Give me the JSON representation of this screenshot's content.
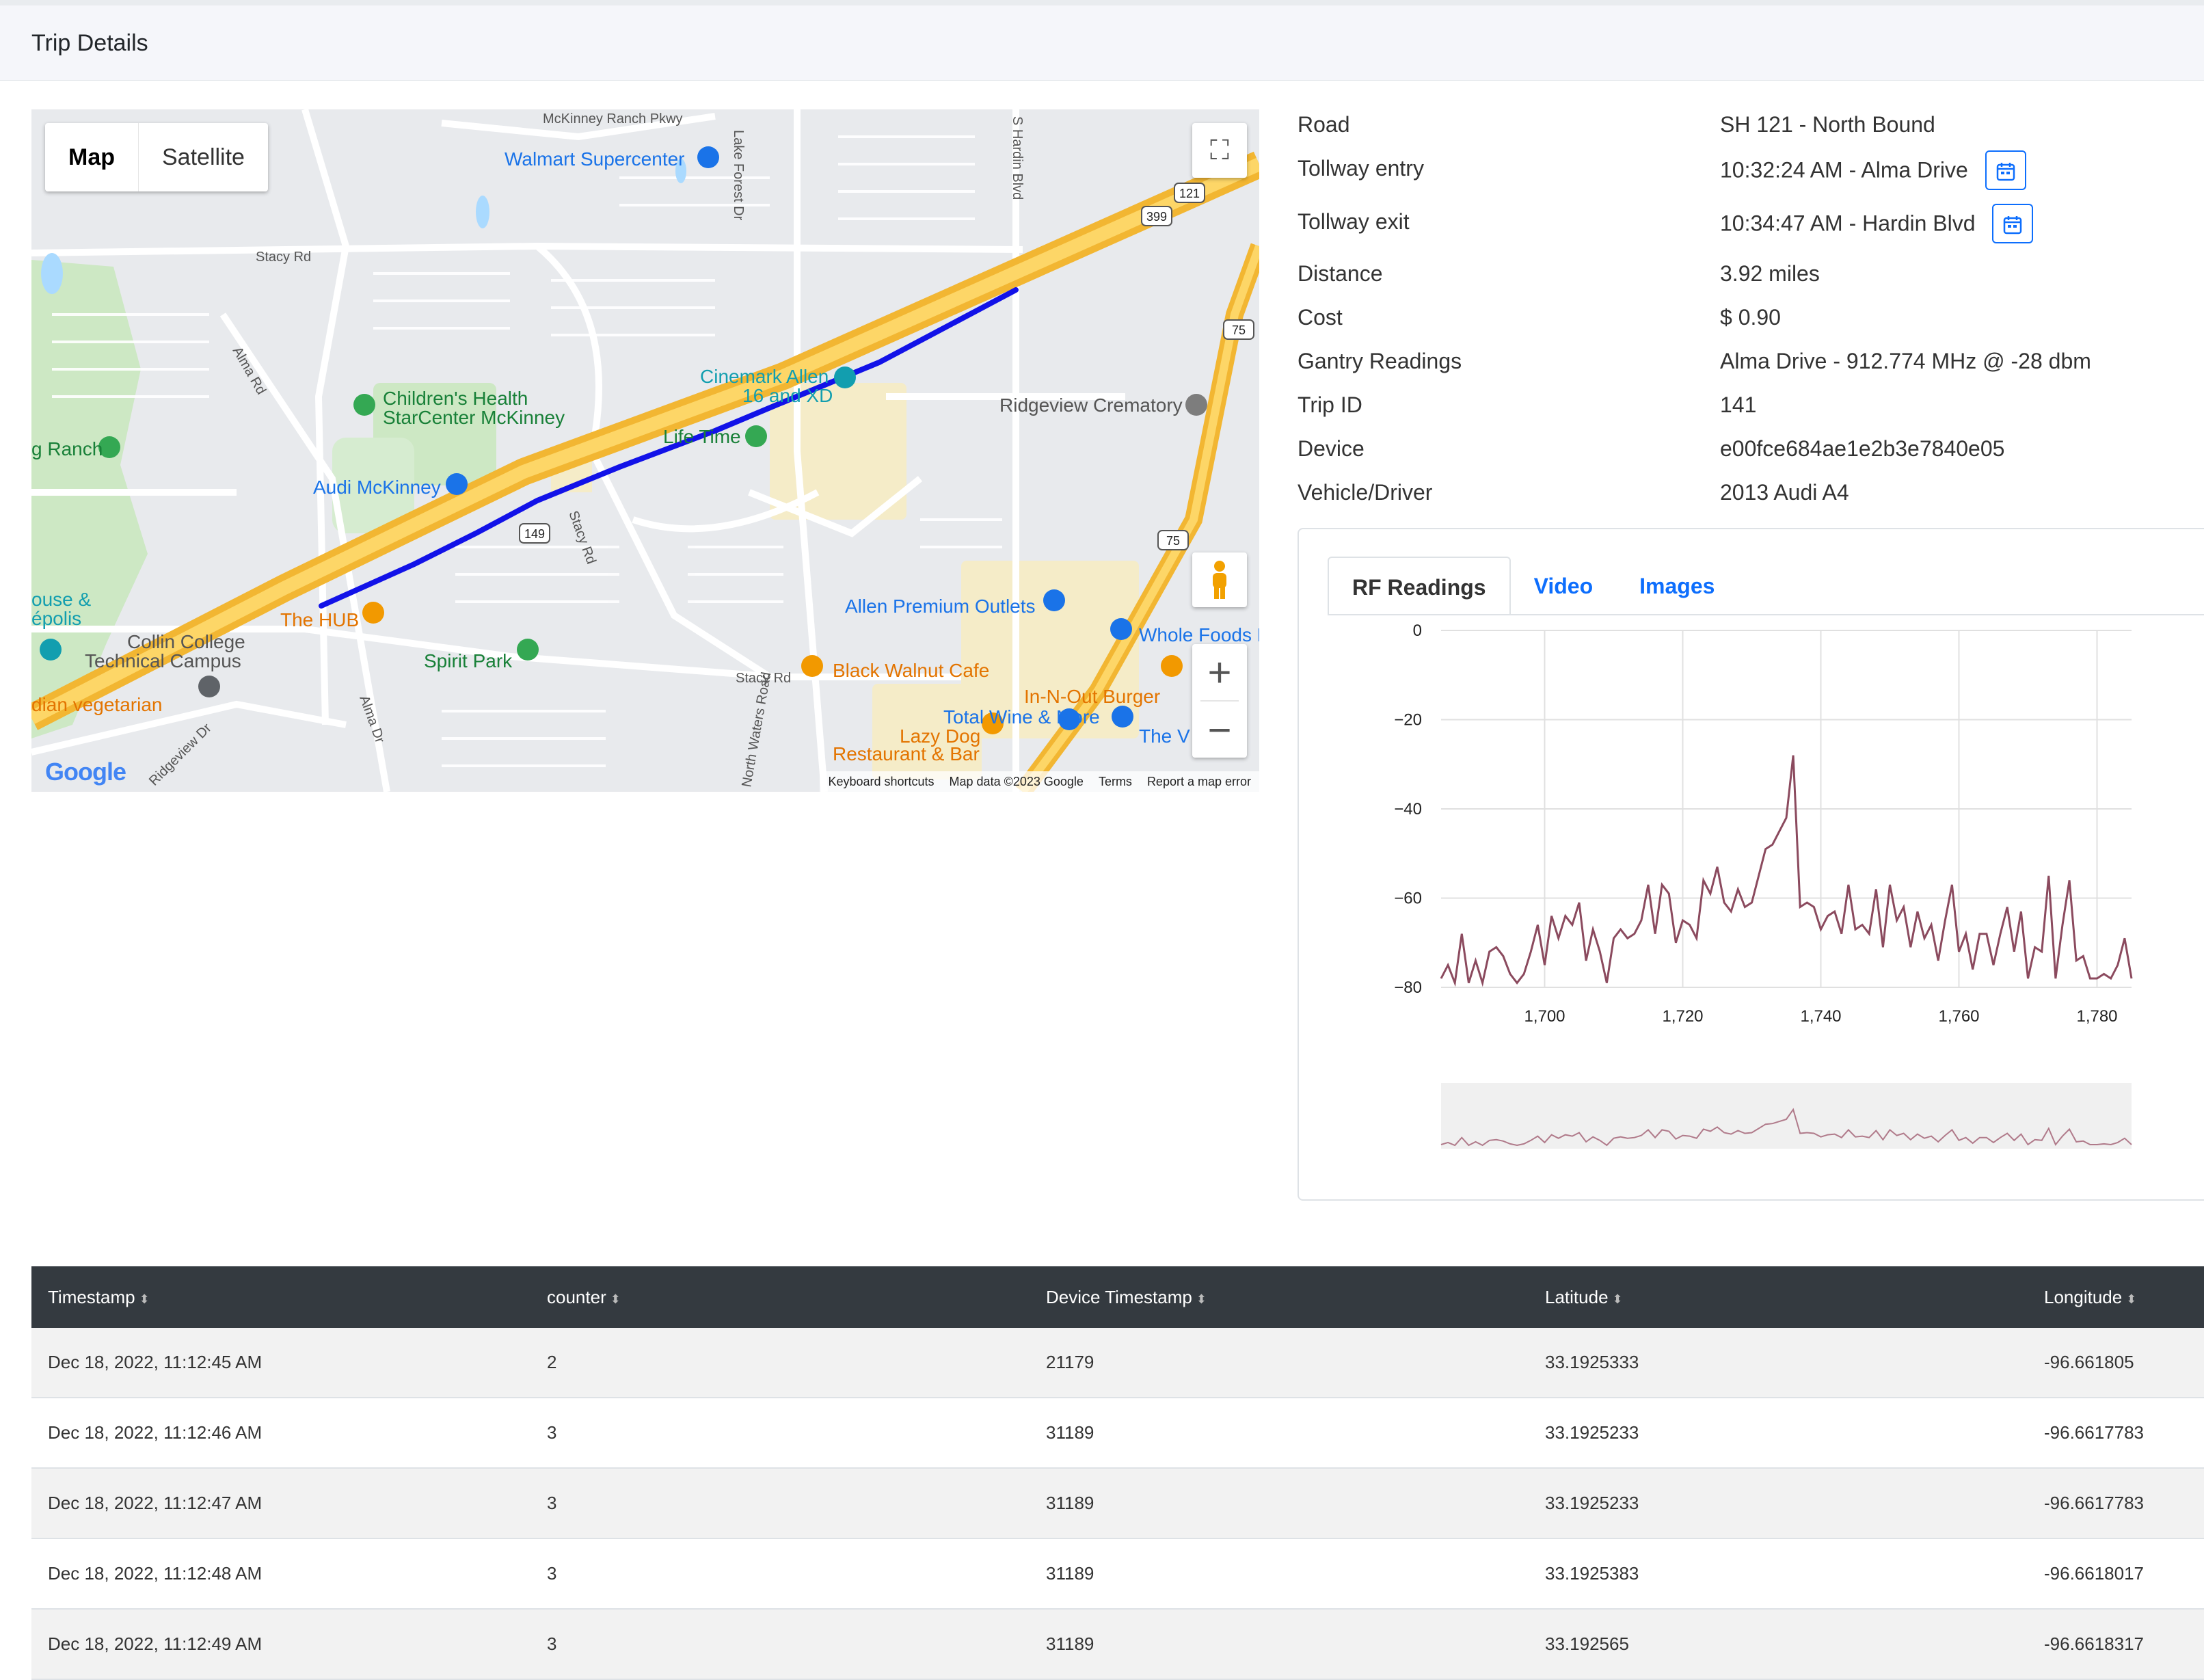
{
  "header": {
    "title": "Trip Details"
  },
  "map": {
    "toggle": {
      "map": "Map",
      "satellite": "Satellite"
    },
    "labels": [
      {
        "t": "McKinney Ranch Pkwy",
        "c": "#555",
        "s": 20
      },
      {
        "t": "Walmart Supercenter",
        "c": "#1a73e8",
        "s": 28
      },
      {
        "t": "Lake Forest Dr",
        "c": "#555",
        "s": 20
      },
      {
        "t": "S Hardin Blvd",
        "c": "#555",
        "s": 20
      },
      {
        "t": "Stacy Rd",
        "c": "#555",
        "s": 20
      },
      {
        "t": "Alma Rd",
        "c": "#555",
        "s": 20
      },
      {
        "t": "Children's Health",
        "c": "#188038",
        "s": 28
      },
      {
        "t": "StarCenter McKinney",
        "c": "#188038",
        "s": 28
      },
      {
        "t": "Cinemark Allen",
        "c": "#129eaf",
        "s": 28
      },
      {
        "t": "16 and XD",
        "c": "#129eaf",
        "s": 28
      },
      {
        "t": "Ridgeview Crematory",
        "c": "#555",
        "s": 28
      },
      {
        "t": "g Ranch",
        "c": "#188038",
        "s": 28
      },
      {
        "t": "Life Time",
        "c": "#188038",
        "s": 28
      },
      {
        "t": "Audi McKinney",
        "c": "#1a73e8",
        "s": 28
      },
      {
        "t": "Stacy Rd",
        "c": "#555",
        "s": 20
      },
      {
        "t": "ouse &",
        "c": "#129eaf",
        "s": 28
      },
      {
        "t": "épolis",
        "c": "#129eaf",
        "s": 28
      },
      {
        "t": "The HUB",
        "c": "#e37400",
        "s": 28
      },
      {
        "t": "Allen Premium Outlets",
        "c": "#1a73e8",
        "s": 28
      },
      {
        "t": "Whole Foods M",
        "c": "#1a73e8",
        "s": 28
      },
      {
        "t": "Collin College",
        "c": "#555",
        "s": 28
      },
      {
        "t": "Technical Campus",
        "c": "#555",
        "s": 28
      },
      {
        "t": "Spirit Park",
        "c": "#188038",
        "s": 28
      },
      {
        "t": "Black Walnut Cafe",
        "c": "#e37400",
        "s": 28
      },
      {
        "t": "Stacy Rd",
        "c": "#555",
        "s": 20
      },
      {
        "t": "In-N-Out Burger",
        "c": "#e37400",
        "s": 28
      },
      {
        "t": "Total Wine & More",
        "c": "#1a73e8",
        "s": 28
      },
      {
        "t": "dian vegetarian",
        "c": "#e37400",
        "s": 28
      },
      {
        "t": "Alma Dr",
        "c": "#555",
        "s": 20
      },
      {
        "t": "Lazy Dog",
        "c": "#e37400",
        "s": 28
      },
      {
        "t": "Restaurant & Bar",
        "c": "#e37400",
        "s": 28
      },
      {
        "t": "The V",
        "c": "#1a73e8",
        "s": 28
      },
      {
        "t": "Ridgeview Dr",
        "c": "#555",
        "s": 20
      },
      {
        "t": "North Waters Road",
        "c": "#555",
        "s": 20
      }
    ],
    "shields": [
      "121",
      "399",
      "75",
      "149",
      "75"
    ],
    "google": "Google",
    "attribution": [
      "Keyboard shortcuts",
      "Map data ©2023 Google",
      "Terms",
      "Report a map error"
    ]
  },
  "details": [
    {
      "label": "Road",
      "value": "SH 121 - North Bound",
      "cal": false
    },
    {
      "label": "Tollway entry",
      "value": "10:32:24 AM - Alma Drive",
      "cal": true
    },
    {
      "label": "Tollway exit",
      "value": "10:34:47 AM - Hardin Blvd",
      "cal": true
    },
    {
      "label": "Distance",
      "value": "3.92 miles",
      "cal": false
    },
    {
      "label": "Cost",
      "value": "$ 0.90",
      "cal": false
    },
    {
      "label": "Gantry Readings",
      "value": "Alma Drive - 912.774 MHz @ -28 dbm",
      "cal": false
    },
    {
      "label": "Trip ID",
      "value": "141",
      "cal": false
    },
    {
      "label": "Device",
      "value": "e00fce684ae1e2b3e7840e05",
      "cal": false
    },
    {
      "label": "Vehicle/Driver",
      "value": "2013 Audi A4",
      "cal": false
    }
  ],
  "tabs": [
    "RF Readings",
    "Video",
    "Images"
  ],
  "chart_data": {
    "type": "line",
    "xlim": [
      1685,
      1785
    ],
    "ylim": [
      -80,
      0
    ],
    "xticks": [
      1700,
      1720,
      1740,
      1760,
      1780
    ],
    "xtick_labels": [
      "1,700",
      "1,720",
      "1,740",
      "1,760",
      "1,780"
    ],
    "yticks": [
      0,
      -20,
      -40,
      -60,
      -80
    ],
    "ytick_labels": [
      "0",
      "−20",
      "−40",
      "−60",
      "−80"
    ],
    "color": "#8b4a5e",
    "x": [
      1685,
      1686,
      1687,
      1688,
      1689,
      1690,
      1691,
      1692,
      1693,
      1694,
      1695,
      1696,
      1697,
      1698,
      1699,
      1700,
      1701,
      1702,
      1703,
      1704,
      1705,
      1706,
      1707,
      1708,
      1709,
      1710,
      1711,
      1712,
      1713,
      1714,
      1715,
      1716,
      1717,
      1718,
      1719,
      1720,
      1721,
      1722,
      1723,
      1724,
      1725,
      1726,
      1727,
      1728,
      1729,
      1730,
      1731,
      1732,
      1733,
      1734,
      1735,
      1736,
      1737,
      1738,
      1739,
      1740,
      1741,
      1742,
      1743,
      1744,
      1745,
      1746,
      1747,
      1748,
      1749,
      1750,
      1751,
      1752,
      1753,
      1754,
      1755,
      1756,
      1757,
      1758,
      1759,
      1760,
      1761,
      1762,
      1763,
      1764,
      1765,
      1766,
      1767,
      1768,
      1769,
      1770,
      1771,
      1772,
      1773,
      1774,
      1775,
      1776,
      1777,
      1778,
      1779,
      1780,
      1781,
      1782,
      1783,
      1784,
      1785
    ],
    "values": [
      -78,
      -75,
      -79,
      -68,
      -79,
      -74,
      -79,
      -72,
      -71,
      -73,
      -77,
      -79,
      -77,
      -72,
      -66,
      -75,
      -64,
      -69,
      -64,
      -66,
      -61,
      -74,
      -67,
      -72,
      -79,
      -69,
      -67,
      -69,
      -68,
      -65,
      -57,
      -68,
      -57,
      -59,
      -70,
      -65,
      -66,
      -69,
      -56,
      -59,
      -53,
      -61,
      -63,
      -58,
      -62,
      -61,
      -55,
      -49,
      -48,
      -45,
      -42,
      -28,
      -62,
      -61,
      -62,
      -67,
      -64,
      -63,
      -68,
      -57,
      -67,
      -66,
      -68,
      -58,
      -71,
      -57,
      -65,
      -62,
      -71,
      -63,
      -69,
      -66,
      -74,
      -65,
      -57,
      -72,
      -68,
      -76,
      -68,
      -68,
      -75,
      -68,
      -62,
      -72,
      -63,
      -78,
      -71,
      -72,
      -55,
      -78,
      -66,
      -56,
      -74,
      -73,
      -78,
      -78,
      -77,
      -78,
      -75,
      -69,
      -78
    ]
  },
  "table": {
    "columns": [
      "Timestamp",
      "counter",
      "Device Timestamp",
      "Latitude",
      "Longitude"
    ],
    "rows": [
      [
        "Dec 18, 2022, 11:12:45 AM",
        "2",
        "21179",
        "33.1925333",
        "-96.661805"
      ],
      [
        "Dec 18, 2022, 11:12:46 AM",
        "3",
        "31189",
        "33.1925233",
        "-96.6617783"
      ],
      [
        "Dec 18, 2022, 11:12:47 AM",
        "3",
        "31189",
        "33.1925233",
        "-96.6617783"
      ],
      [
        "Dec 18, 2022, 11:12:48 AM",
        "3",
        "31189",
        "33.1925383",
        "-96.6618017"
      ],
      [
        "Dec 18, 2022, 11:12:49 AM",
        "3",
        "31189",
        "33.192565",
        "-96.6618317"
      ]
    ]
  }
}
